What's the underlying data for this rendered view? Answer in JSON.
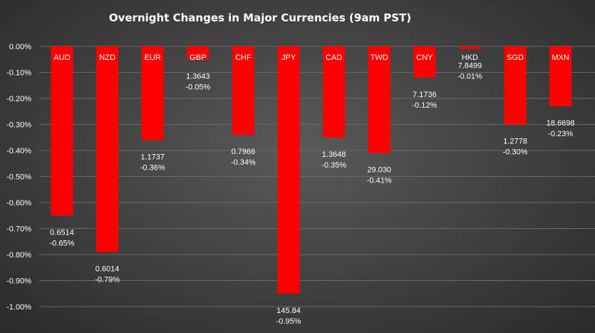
{
  "chart_data": {
    "type": "bar",
    "title": "Overnight Changes in Major Currencies (9am PST)",
    "xlabel": "",
    "ylabel": "",
    "ylim": [
      -1.0,
      0.0
    ],
    "yticks": [
      "0.00%",
      "-0.10%",
      "-0.20%",
      "-0.30%",
      "-0.40%",
      "-0.50%",
      "-0.60%",
      "-0.70%",
      "-0.80%",
      "-0.90%",
      "-1.00%"
    ],
    "grid": true,
    "bar_color": "#ff0000",
    "categories": [
      "AUD",
      "NZD",
      "EUR",
      "GBP",
      "CHF",
      "JPY",
      "CAD",
      "TWD",
      "CNY",
      "HKD",
      "SGD",
      "MXN"
    ],
    "values": [
      -0.65,
      -0.79,
      -0.36,
      -0.05,
      -0.34,
      -0.95,
      -0.35,
      -0.41,
      -0.12,
      -0.01,
      -0.3,
      -0.23
    ],
    "rates": [
      "0.6514",
      "0.6014",
      "1.1737",
      "1.3643",
      "0.7966",
      "145.84",
      "1.3648",
      "29.030",
      "7.1736",
      "7.8499",
      "1.2778",
      "18.6698"
    ],
    "value_labels": [
      "-0.65%",
      "-0.79%",
      "-0.36%",
      "-0.05%",
      "-0.34%",
      "-0.95%",
      "-0.35%",
      "-0.41%",
      "-0.12%",
      "-0.01%",
      "-0.30%",
      "-0.23%"
    ]
  }
}
